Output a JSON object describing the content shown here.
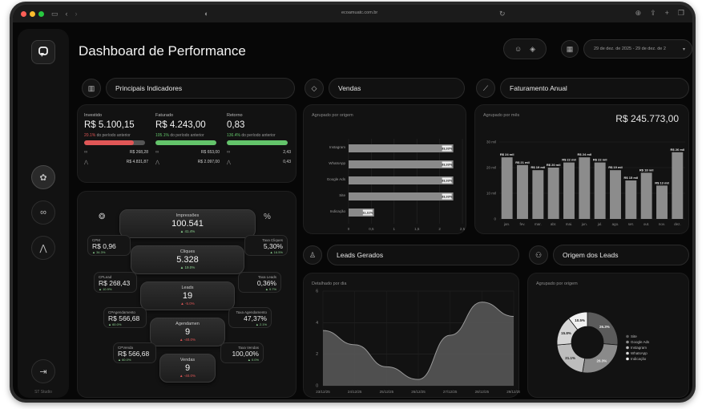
{
  "browser": {
    "url": "ecoamuatc.com.br"
  },
  "sidebar": {
    "footer": "ST Studio"
  },
  "header": {
    "title": "Dashboard de Performance",
    "date_range": "29 de dez. de 2025 - 29 de dez. de 2"
  },
  "sections": {
    "indicators": "Principais Indicadores",
    "sales": "Vendas",
    "annual": "Faturamento Anual",
    "leads": "Leads Gerados",
    "origins": "Origem dos Leads"
  },
  "indicators": [
    {
      "label": "Investido",
      "value": "R$ 5.100,15",
      "delta_pct": "20.1%",
      "delta_text": "do período anterior",
      "delta_sign": "neg",
      "bar_fraction": 0.82,
      "bar_color": "#e05656",
      "row1": "R$ 268,28",
      "row2": "R$ 4.831,87"
    },
    {
      "label": "Faturado",
      "value": "R$ 4.243,00",
      "delta_pct": "105.1%",
      "delta_text": "do período anterior",
      "delta_sign": "pos",
      "bar_fraction": 1.0,
      "bar_color": "#63c46a",
      "row1": "R$ 653,00",
      "row2": "R$ 2.097,00"
    },
    {
      "label": "Retorno",
      "value": "0,83",
      "delta_pct": "136.4%",
      "delta_text": "do período anterior",
      "delta_sign": "pos",
      "bar_fraction": 1.0,
      "bar_color": "#63c46a",
      "row1": "2,43",
      "row2": "0,43"
    }
  ],
  "funnel": {
    "stages": [
      {
        "label": "Impressões",
        "value": "100.541",
        "delta": "▲ 41.4%",
        "sign": "pos"
      },
      {
        "label": "Cliques",
        "value": "5.328",
        "delta": "▲ 19.0%",
        "sign": "pos"
      },
      {
        "label": "Leads",
        "value": "19",
        "delta": "▲ -5.0%",
        "sign": "neg"
      },
      {
        "label": "Agendamen",
        "value": "9",
        "delta": "▲ -40.0%",
        "sign": "neg"
      },
      {
        "label": "Vendas",
        "value": "9",
        "delta": "▲ -40.0%",
        "sign": "neg"
      }
    ],
    "left_rates": [
      {
        "label": "CPM",
        "value": "R$ 0,96",
        "delta": "▲ 34.3%"
      },
      {
        "label": "CPLead",
        "value": "R$ 268,43",
        "delta": "▲ 10.9%"
      },
      {
        "label": "CPAgendamento",
        "value": "R$ 566,68",
        "delta": "▲ 60.0%"
      },
      {
        "label": "CPVenda",
        "value": "R$ 566,68",
        "delta": "▲ 60.0%"
      }
    ],
    "right_rates": [
      {
        "label": "Taxa Cliques",
        "value": "5,30%",
        "delta": "▲ 16.5%"
      },
      {
        "label": "Taxa Leads",
        "value": "0,36%",
        "delta": "▲ 9.7%"
      },
      {
        "label": "Taxa Agendamento",
        "value": "47,37%",
        "delta": "▲ 2.1%"
      },
      {
        "label": "Taxa Vendas",
        "value": "100,00%",
        "delta": "▲ 0.0%"
      }
    ]
  },
  "sales_card": {
    "subtitle": "Agrupado por origem"
  },
  "annual_card": {
    "subtitle": "Agrupado por mês",
    "total": "R$ 245.773,00"
  },
  "leads_card": {
    "subtitle": "Detalhado por dia"
  },
  "origins_card": {
    "subtitle": "Agrupado por origem"
  },
  "chart_data": [
    {
      "type": "bar",
      "orientation": "horizontal",
      "categories": [
        "Instagram",
        "WhatsApp",
        "Google Ads",
        "Site",
        "Indicação"
      ],
      "values": [
        2.3,
        2.3,
        2.3,
        2.3,
        0.56
      ],
      "data_labels": [
        "33,33%",
        "33,33%",
        "33,33%",
        "33,33%",
        "11,11%"
      ],
      "xlim": [
        0,
        2.5
      ],
      "x_ticks": [
        "0",
        "0,5",
        "1",
        "1,5",
        "2",
        "2,5"
      ],
      "grid": true
    },
    {
      "type": "bar",
      "categories": [
        "jan.",
        "fev.",
        "mar.",
        "abr.",
        "mai.",
        "jun.",
        "jul.",
        "ago.",
        "set.",
        "out.",
        "nov.",
        "dez."
      ],
      "values": [
        24,
        21,
        19,
        20,
        22,
        24,
        22,
        19,
        15,
        18,
        13,
        26
      ],
      "data_labels": [
        "R$ 24 mil",
        "R$ 21 mil",
        "R$ 19 mil",
        "R$ 20 mil",
        "R$ 22 mil",
        "R$ 24 mil",
        "R$ 22 mil",
        "R$ 19 mil",
        "R$ 15 mil",
        "R$ 18 mil",
        "R$ 13 mil",
        "R$ 26 mil"
      ],
      "ylim": [
        0,
        30
      ],
      "y_ticks": [
        "0",
        "10 mil",
        "20 mil",
        "30 mil"
      ],
      "grid": true
    },
    {
      "type": "area",
      "x": [
        "23/12/25",
        "24/12/25",
        "25/12/25",
        "26/12/25",
        "27/12/25",
        "28/12/25",
        "29/12/25"
      ],
      "values": [
        3.5,
        2.6,
        1.2,
        0.4,
        3.2,
        5.3,
        4.4
      ],
      "ylim": [
        0,
        6
      ],
      "y_ticks": [
        "0",
        "2",
        "4",
        "6"
      ],
      "grid": true
    },
    {
      "type": "pie",
      "donut": true,
      "labels": [
        "Site",
        "Google Ads",
        "Instagram",
        "WhatsApp",
        "Indicação"
      ],
      "values": [
        26.3,
        26.3,
        21.1,
        15.8,
        10.5
      ],
      "slice_labels": [
        "26.3%",
        "26.3%",
        "21.1%",
        "15.8%",
        "10.5%"
      ],
      "colors": [
        "#5b5b5b",
        "#8a8a8a",
        "#bdbdbd",
        "#d6d6d6",
        "#f0f0f0"
      ],
      "legend": "right"
    }
  ]
}
